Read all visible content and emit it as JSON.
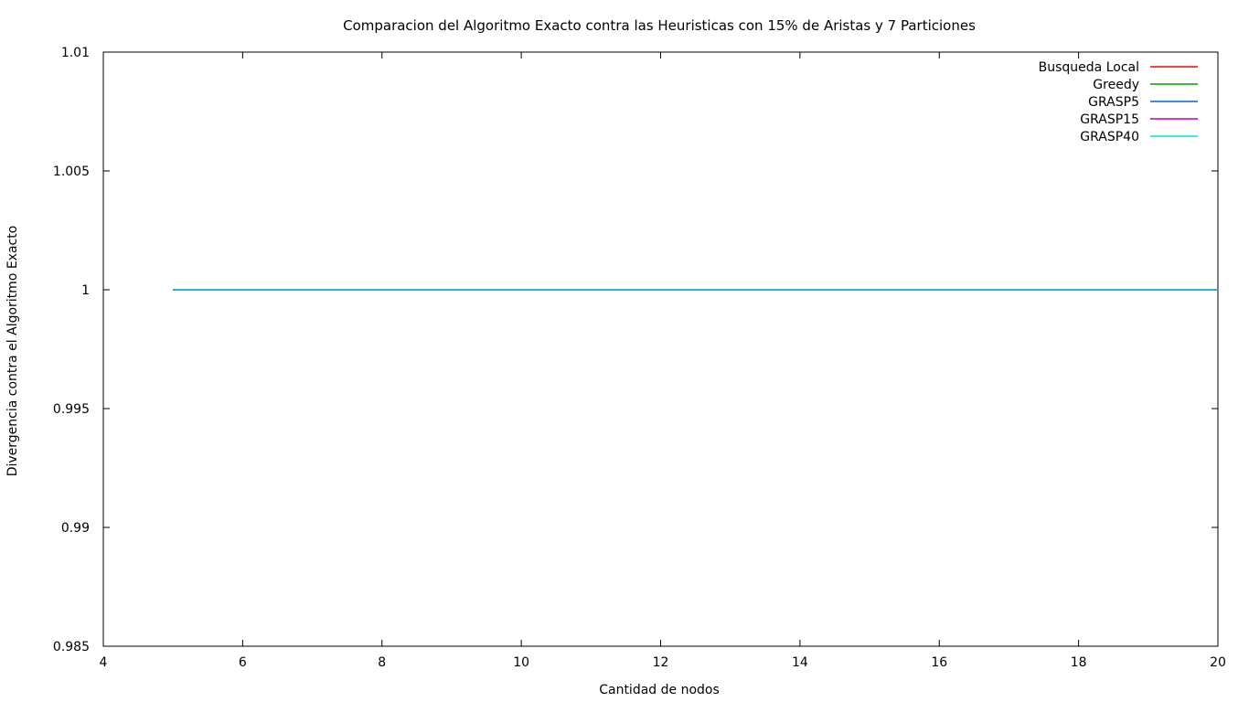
{
  "chart_data": {
    "type": "line",
    "title": "Comparacion del Algoritmo Exacto contra las Heuristicas con 15% de Aristas y 7 Particiones",
    "xlabel": "Cantidad de nodos",
    "ylabel": "Divergencia contra el Algoritmo Exacto",
    "xlim": [
      4,
      20
    ],
    "ylim": [
      0.985,
      1.01
    ],
    "xticks": [
      4,
      6,
      8,
      10,
      12,
      14,
      16,
      18,
      20
    ],
    "yticks": [
      0.985,
      0.99,
      0.995,
      1,
      1.005,
      1.01
    ],
    "xtick_labels": [
      "4",
      "6",
      "8",
      "10",
      "12",
      "14",
      "16",
      "18",
      "20"
    ],
    "ytick_labels": [
      "0.985",
      "0.99",
      "0.995",
      "1",
      "1.005",
      "1.01"
    ],
    "grid": false,
    "legend_position": "top-right",
    "x": [
      5,
      6,
      7,
      8,
      9,
      10,
      11,
      12,
      13,
      14,
      15,
      16,
      17,
      18,
      19,
      20
    ],
    "series": [
      {
        "name": "Busqueda Local",
        "color": "#ff0000",
        "values": [
          1,
          1,
          1,
          1,
          1,
          1,
          1,
          1,
          1,
          1,
          1,
          1,
          1,
          1,
          1,
          1
        ]
      },
      {
        "name": "Greedy",
        "color": "#00a000",
        "values": [
          1,
          1,
          1,
          1,
          1,
          1,
          1,
          1,
          1,
          1,
          1,
          1,
          1,
          1,
          1,
          1
        ]
      },
      {
        "name": "GRASP5",
        "color": "#0066dd",
        "values": [
          1,
          1,
          1,
          1,
          1,
          1,
          1,
          1,
          1,
          1,
          1,
          1,
          1,
          1,
          1,
          1
        ]
      },
      {
        "name": "GRASP15",
        "color": "#c000c0",
        "values": [
          1,
          1,
          1,
          1,
          1,
          1,
          1,
          1,
          1,
          1,
          1,
          1,
          1,
          1,
          1,
          1
        ]
      },
      {
        "name": "GRASP40",
        "color": "#00e0e0",
        "values": [
          1,
          1,
          1,
          1,
          1,
          1,
          1,
          1,
          1,
          1,
          1,
          1,
          1,
          1,
          1,
          1
        ]
      }
    ]
  }
}
